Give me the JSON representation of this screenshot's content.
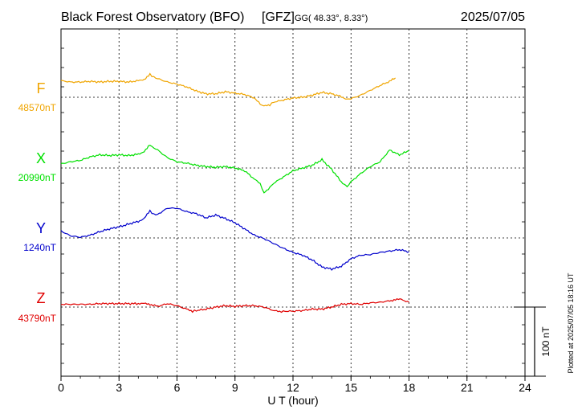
{
  "header": {
    "station": "Black Forest Observatory (BFO)",
    "institute": "[GFZ]",
    "coords_prefix": "GG",
    "coords": "( 48.33°,   8.33°)",
    "date": "2025/07/05"
  },
  "footer_note": "Plotted at 2025/07/05 18:16 UT",
  "chart_data": {
    "type": "line",
    "xlabel": "U T (hour)",
    "xlim": [
      0,
      24
    ],
    "xticks": [
      0,
      3,
      6,
      9,
      12,
      15,
      18,
      21,
      24
    ],
    "scale_bar": {
      "label": "100 nT",
      "value_nT": 100
    },
    "series": [
      {
        "name": "F",
        "baseline_label": "48570nT",
        "baseline_nT": 48570,
        "color": "#f0a500",
        "points": [
          [
            0,
            24
          ],
          [
            0.5,
            22
          ],
          [
            1,
            22
          ],
          [
            1.5,
            23
          ],
          [
            2,
            22
          ],
          [
            2.5,
            23
          ],
          [
            3,
            23
          ],
          [
            3.5,
            22
          ],
          [
            4,
            24
          ],
          [
            4.3,
            26
          ],
          [
            4.6,
            33
          ],
          [
            4.8,
            29
          ],
          [
            5,
            27
          ],
          [
            5.5,
            22
          ],
          [
            6,
            19
          ],
          [
            6.5,
            15
          ],
          [
            7,
            9
          ],
          [
            7.5,
            5
          ],
          [
            8,
            5
          ],
          [
            8.5,
            8
          ],
          [
            9,
            6
          ],
          [
            9.5,
            4
          ],
          [
            10,
            -1
          ],
          [
            10.3,
            -10
          ],
          [
            10.5,
            -13
          ],
          [
            10.8,
            -11
          ],
          [
            11,
            -7
          ],
          [
            11.5,
            -4
          ],
          [
            12,
            -1
          ],
          [
            12.5,
            0
          ],
          [
            13,
            3
          ],
          [
            13.5,
            7
          ],
          [
            14,
            5
          ],
          [
            14.5,
            1
          ],
          [
            14.8,
            -3
          ],
          [
            15,
            -2
          ],
          [
            15.5,
            3
          ],
          [
            16,
            10
          ],
          [
            16.5,
            17
          ],
          [
            17,
            23
          ],
          [
            17.3,
            28
          ]
        ]
      },
      {
        "name": "X",
        "baseline_label": "20990nT",
        "baseline_nT": 20990,
        "color": "#00e000",
        "points": [
          [
            0,
            6
          ],
          [
            0.5,
            9
          ],
          [
            1,
            11
          ],
          [
            1.5,
            16
          ],
          [
            2,
            19
          ],
          [
            2.5,
            18
          ],
          [
            3,
            19
          ],
          [
            3.5,
            18
          ],
          [
            4,
            20
          ],
          [
            4.3,
            24
          ],
          [
            4.6,
            33
          ],
          [
            4.8,
            29
          ],
          [
            5,
            26
          ],
          [
            5.5,
            15
          ],
          [
            6,
            9
          ],
          [
            6.5,
            7
          ],
          [
            7,
            4
          ],
          [
            7.5,
            2
          ],
          [
            8,
            1
          ],
          [
            8.5,
            2
          ],
          [
            9,
            0
          ],
          [
            9.5,
            -4
          ],
          [
            10,
            -16
          ],
          [
            10.3,
            -23
          ],
          [
            10.5,
            -36
          ],
          [
            10.8,
            -28
          ],
          [
            11,
            -22
          ],
          [
            11.5,
            -13
          ],
          [
            12,
            -4
          ],
          [
            12.5,
            0
          ],
          [
            13,
            4
          ],
          [
            13.5,
            12
          ],
          [
            14,
            -2
          ],
          [
            14.5,
            -20
          ],
          [
            14.8,
            -27
          ],
          [
            15,
            -20
          ],
          [
            15.5,
            -8
          ],
          [
            16,
            2
          ],
          [
            16.5,
            9
          ],
          [
            17,
            26
          ],
          [
            17.5,
            19
          ],
          [
            18,
            25
          ]
        ]
      },
      {
        "name": "Y",
        "baseline_label": "1240nT",
        "baseline_nT": 1240,
        "color": "#0000cc",
        "points": [
          [
            0,
            10
          ],
          [
            0.5,
            3
          ],
          [
            1,
            1
          ],
          [
            1.5,
            4
          ],
          [
            2,
            9
          ],
          [
            2.5,
            13
          ],
          [
            3,
            16
          ],
          [
            3.5,
            20
          ],
          [
            4,
            24
          ],
          [
            4.3,
            28
          ],
          [
            4.6,
            39
          ],
          [
            4.8,
            34
          ],
          [
            5,
            34
          ],
          [
            5.5,
            43
          ],
          [
            6,
            43
          ],
          [
            6.5,
            38
          ],
          [
            7,
            35
          ],
          [
            7.5,
            29
          ],
          [
            8,
            33
          ],
          [
            8.5,
            28
          ],
          [
            9,
            22
          ],
          [
            9.5,
            13
          ],
          [
            10,
            4
          ],
          [
            10.5,
            -1
          ],
          [
            11,
            -8
          ],
          [
            11.5,
            -15
          ],
          [
            12,
            -21
          ],
          [
            12.5,
            -25
          ],
          [
            13,
            -32
          ],
          [
            13.5,
            -42
          ],
          [
            14,
            -45
          ],
          [
            14.5,
            -41
          ],
          [
            15,
            -30
          ],
          [
            15.5,
            -25
          ],
          [
            16,
            -24
          ],
          [
            16.5,
            -21
          ],
          [
            17,
            -19
          ],
          [
            17.5,
            -17
          ],
          [
            18,
            -20
          ]
        ]
      },
      {
        "name": "Z",
        "baseline_label": "43790nT",
        "baseline_nT": 43790,
        "color": "#e00000",
        "points": [
          [
            0,
            4
          ],
          [
            0.5,
            4
          ],
          [
            1,
            4
          ],
          [
            1.5,
            4
          ],
          [
            2,
            5
          ],
          [
            2.5,
            5
          ],
          [
            3,
            5
          ],
          [
            3.5,
            5
          ],
          [
            4,
            5
          ],
          [
            4.3,
            5
          ],
          [
            4.6,
            4
          ],
          [
            5,
            1
          ],
          [
            5.5,
            5
          ],
          [
            6,
            2
          ],
          [
            6.5,
            -3
          ],
          [
            6.8,
            -6
          ],
          [
            7,
            -5
          ],
          [
            7.5,
            -3
          ],
          [
            8,
            0
          ],
          [
            8.5,
            2
          ],
          [
            9,
            1
          ],
          [
            9.5,
            2
          ],
          [
            10,
            2
          ],
          [
            10.5,
            0
          ],
          [
            11,
            -5
          ],
          [
            11.3,
            -7
          ],
          [
            11.5,
            -6
          ],
          [
            12,
            -6
          ],
          [
            12.5,
            -5
          ],
          [
            13,
            -3
          ],
          [
            13.5,
            -3
          ],
          [
            14,
            0
          ],
          [
            14.5,
            4
          ],
          [
            15,
            5
          ],
          [
            15.5,
            4
          ],
          [
            16,
            6
          ],
          [
            16.5,
            7
          ],
          [
            17,
            9
          ],
          [
            17.3,
            11
          ],
          [
            17.6,
            11
          ],
          [
            18,
            7
          ]
        ]
      }
    ]
  }
}
